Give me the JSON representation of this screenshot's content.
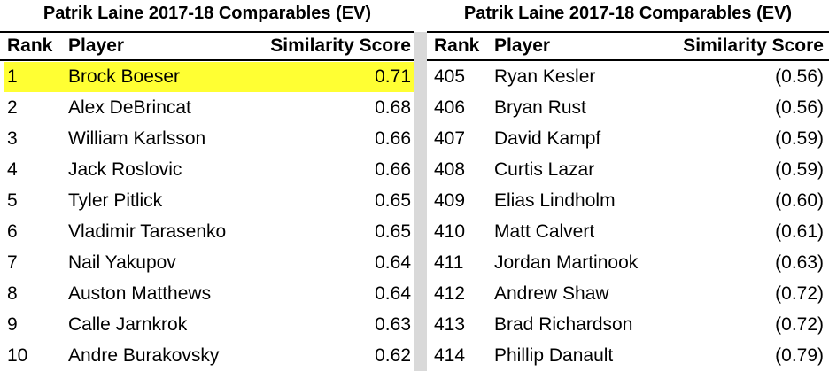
{
  "tables": [
    {
      "title": "Patrik Laine 2017-18 Comparables (EV)",
      "columns": [
        "Rank",
        "Player",
        "Similarity Score"
      ],
      "rows": [
        [
          "1",
          "Brock Boeser",
          "0.71"
        ],
        [
          "2",
          "Alex DeBrincat",
          "0.68"
        ],
        [
          "3",
          "William Karlsson",
          "0.66"
        ],
        [
          "4",
          "Jack Roslovic",
          "0.66"
        ],
        [
          "5",
          "Tyler Pitlick",
          "0.65"
        ],
        [
          "6",
          "Vladimir Tarasenko",
          "0.65"
        ],
        [
          "7",
          "Nail Yakupov",
          "0.64"
        ],
        [
          "8",
          "Auston Matthews",
          "0.64"
        ],
        [
          "9",
          "Calle Jarnkrok",
          "0.63"
        ],
        [
          "10",
          "Andre Burakovsky",
          "0.62"
        ]
      ]
    },
    {
      "title": "Patrik Laine 2017-18 Comparables (EV)",
      "columns": [
        "Rank",
        "Player",
        "Similarity Score"
      ],
      "rows": [
        [
          "405",
          "Ryan Kesler",
          "(0.56)"
        ],
        [
          "406",
          "Bryan Rust",
          "(0.56)"
        ],
        [
          "407",
          "David Kampf",
          "(0.59)"
        ],
        [
          "408",
          "Curtis Lazar",
          "(0.59)"
        ],
        [
          "409",
          "Elias Lindholm",
          "(0.60)"
        ],
        [
          "410",
          "Matt Calvert",
          "(0.61)"
        ],
        [
          "411",
          "Jordan Martinook",
          "(0.63)"
        ],
        [
          "412",
          "Andrew Shaw",
          "(0.72)"
        ],
        [
          "413",
          "Brad Richardson",
          "(0.72)"
        ],
        [
          "414",
          "Phillip Danault",
          "(0.79)"
        ]
      ]
    }
  ]
}
